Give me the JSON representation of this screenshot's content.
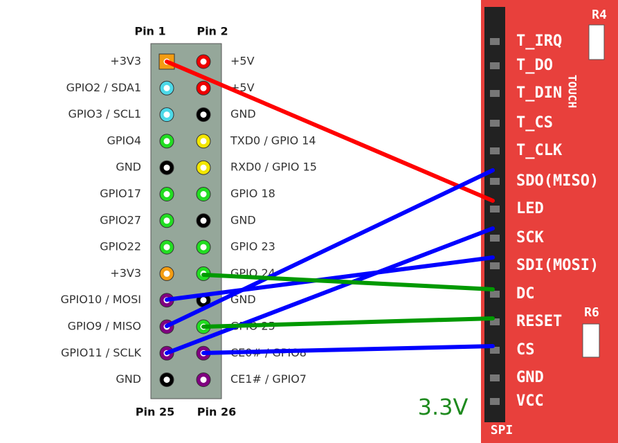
{
  "header": {
    "top_left": "Pin 1",
    "top_right": "Pin 2",
    "bottom_left": "Pin 25",
    "bottom_right": "Pin 26"
  },
  "pins": [
    {
      "left": "+3V3",
      "right": "+5V"
    },
    {
      "left": "GPIO2 / SDA1",
      "right": "+5V"
    },
    {
      "left": "GPIO3 / SCL1",
      "right": "GND"
    },
    {
      "left": "GPIO4",
      "right": "TXD0 / GPIO 14"
    },
    {
      "left": "GND",
      "right": "RXD0 / GPIO 15"
    },
    {
      "left": "GPIO17",
      "right": "GPIO 18"
    },
    {
      "left": "GPIO27",
      "right": "GND"
    },
    {
      "left": "GPIO22",
      "right": "GPIO 23"
    },
    {
      "left": "+3V3",
      "right": "GPIO 24"
    },
    {
      "left": "GPIO10 / MOSI",
      "right": "GND"
    },
    {
      "left": "GPIO9 / MISO",
      "right": "GPIO 25"
    },
    {
      "left": "GPIO11 / SCLK",
      "right": "CE0# / GPIO8"
    },
    {
      "left": "GND",
      "right": "CE1# / GPIO7"
    }
  ],
  "module": {
    "pins": [
      "T_IRQ",
      "T_DO",
      "T_DIN",
      "T_CS",
      "T_CLK",
      "SDO(MISO)",
      "LED",
      "SCK",
      "SDI(MOSI)",
      "DC",
      "RESET",
      "CS",
      "GND",
      "VCC"
    ],
    "touch": "TOUCH",
    "r4": "R4",
    "r6": "R6",
    "spi": "SPI"
  },
  "voltage": "3.3V"
}
